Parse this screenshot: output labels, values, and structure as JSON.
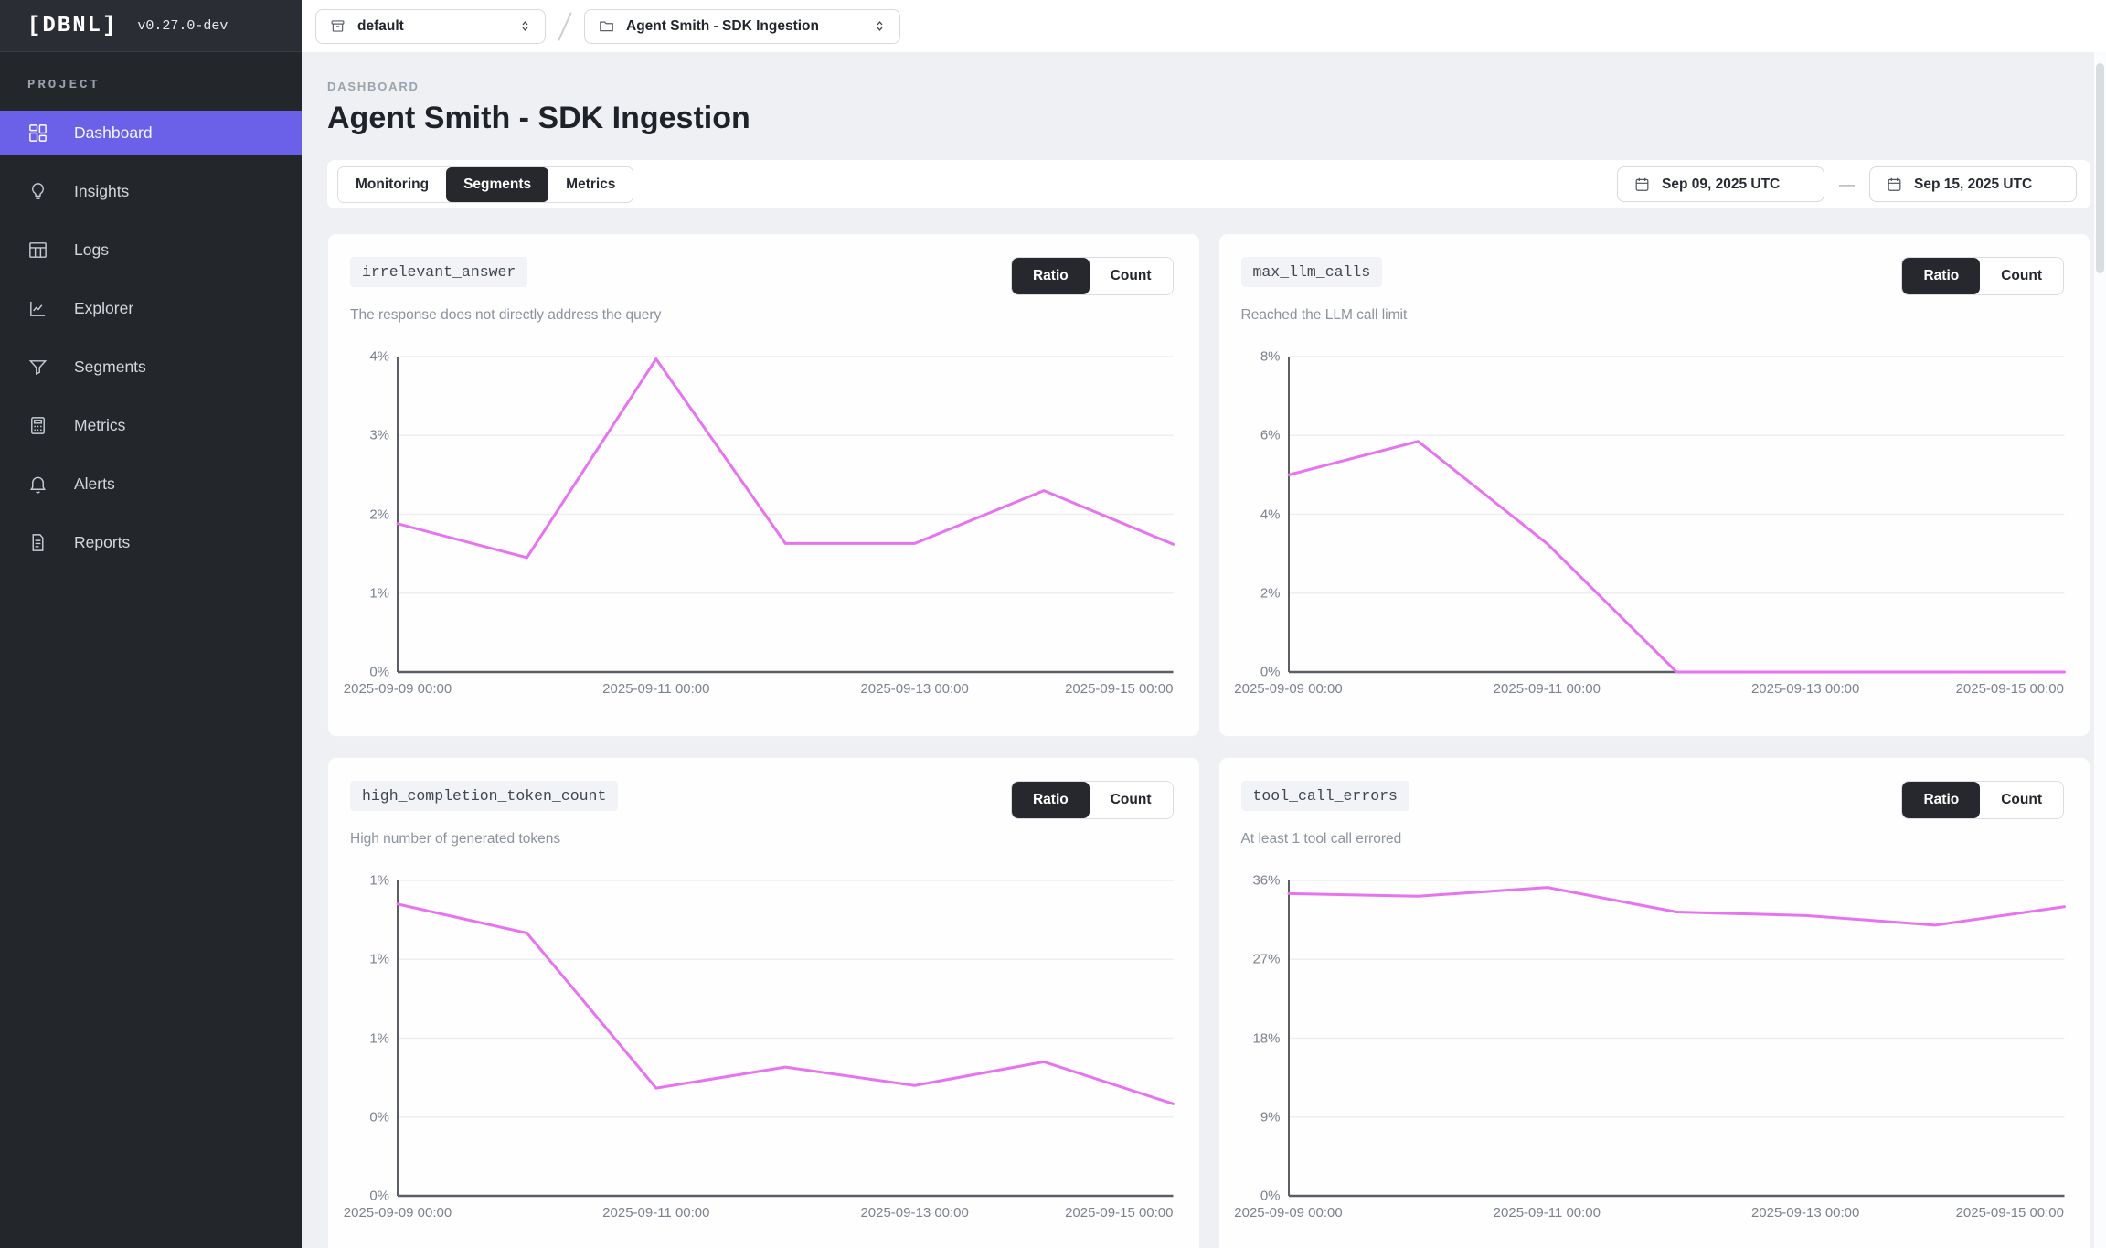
{
  "app": {
    "logo_text": "[DBNL]",
    "version": "v0.27.0-dev"
  },
  "sidebar": {
    "section_label": "PROJECT",
    "items": [
      {
        "label": "Dashboard",
        "icon": "dashboard-icon",
        "active": true
      },
      {
        "label": "Insights",
        "icon": "lightbulb-icon",
        "active": false
      },
      {
        "label": "Logs",
        "icon": "table-icon",
        "active": false
      },
      {
        "label": "Explorer",
        "icon": "chart-line-icon",
        "active": false
      },
      {
        "label": "Segments",
        "icon": "funnel-icon",
        "active": false
      },
      {
        "label": "Metrics",
        "icon": "calculator-icon",
        "active": false
      },
      {
        "label": "Alerts",
        "icon": "bell-icon",
        "active": false
      },
      {
        "label": "Reports",
        "icon": "report-icon",
        "active": false
      }
    ]
  },
  "topbar": {
    "workspace": {
      "label": "default",
      "icon": "archive-icon"
    },
    "project": {
      "label": "Agent Smith - SDK Ingestion",
      "icon": "folder-icon"
    }
  },
  "header": {
    "breadcrumb": "DASHBOARD",
    "title": "Agent Smith - SDK Ingestion"
  },
  "toolbar": {
    "tabs": [
      {
        "label": "Monitoring",
        "active": false
      },
      {
        "label": "Segments",
        "active": true
      },
      {
        "label": "Metrics",
        "active": false
      }
    ],
    "date_start": "Sep 09, 2025 UTC",
    "date_separator": "—",
    "date_end": "Sep 15, 2025 UTC"
  },
  "toggle": {
    "ratio": "Ratio",
    "count": "Count",
    "selected": "Ratio"
  },
  "colors": {
    "accent_purple": "#6a61e8",
    "line_magenta": "#e873f0",
    "sidebar_bg": "#23262b",
    "dark_button": "#26282d",
    "axis": "#5b5f64",
    "gridline": "#eceef1"
  },
  "chart_data": [
    {
      "type": "line",
      "name": "irrelevant_answer",
      "description": "The response does not directly address the query",
      "mode": "Ratio",
      "x": [
        "2025-09-09",
        "2025-09-10",
        "2025-09-11",
        "2025-09-12",
        "2025-09-13",
        "2025-09-14",
        "2025-09-15"
      ],
      "values": [
        1.88,
        1.45,
        3.97,
        1.63,
        1.63,
        2.3,
        1.62
      ],
      "unit": "%",
      "ylim": [
        0,
        4
      ],
      "y_ticks": [
        0,
        1,
        2,
        3,
        4
      ],
      "y_tick_labels": [
        "0%",
        "1%",
        "2%",
        "3%",
        "4%"
      ],
      "x_tick_labels": [
        "2025-09-09 00:00",
        "2025-09-11 00:00",
        "2025-09-13 00:00",
        "2025-09-15 00:00"
      ],
      "grid": true,
      "legend": "none"
    },
    {
      "type": "line",
      "name": "max_llm_calls",
      "description": "Reached the LLM call limit",
      "mode": "Ratio",
      "x": [
        "2025-09-09",
        "2025-09-10",
        "2025-09-11",
        "2025-09-12",
        "2025-09-13",
        "2025-09-14",
        "2025-09-15"
      ],
      "values": [
        5.0,
        5.85,
        3.25,
        0,
        0,
        0,
        0
      ],
      "unit": "%",
      "ylim": [
        0,
        8
      ],
      "y_ticks": [
        0,
        2,
        4,
        6,
        8
      ],
      "y_tick_labels": [
        "0%",
        "2%",
        "4%",
        "6%",
        "8%"
      ],
      "x_tick_labels": [
        "2025-09-09 00:00",
        "2025-09-11 00:00",
        "2025-09-13 00:00",
        "2025-09-15 00:00"
      ],
      "grid": true,
      "legend": "none"
    },
    {
      "type": "line",
      "name": "high_completion_token_count",
      "description": "High number of generated tokens",
      "mode": "Ratio",
      "x": [
        "2025-09-09",
        "2025-09-10",
        "2025-09-11",
        "2025-09-12",
        "2025-09-13",
        "2025-09-14",
        "2025-09-15"
      ],
      "values": [
        1.11,
        1.0,
        0.41,
        0.49,
        0.42,
        0.51,
        0.35
      ],
      "unit": "%",
      "ylim": [
        0,
        1.2
      ],
      "y_ticks": [
        0,
        0.3,
        0.6,
        0.9,
        1.2
      ],
      "y_tick_labels": [
        "0%",
        "0%",
        "1%",
        "1%",
        "1%"
      ],
      "x_tick_labels": [
        "2025-09-09 00:00",
        "2025-09-11 00:00",
        "2025-09-13 00:00",
        "2025-09-15 00:00"
      ],
      "grid": true,
      "legend": "none"
    },
    {
      "type": "line",
      "name": "tool_call_errors",
      "description": "At least 1 tool call errored",
      "mode": "Ratio",
      "x": [
        "2025-09-09",
        "2025-09-10",
        "2025-09-11",
        "2025-09-12",
        "2025-09-13",
        "2025-09-14",
        "2025-09-15"
      ],
      "values": [
        34.5,
        34.2,
        35.2,
        32.4,
        32.0,
        30.9,
        33.0
      ],
      "unit": "%",
      "ylim": [
        0,
        36
      ],
      "y_ticks": [
        0,
        9,
        18,
        27,
        36
      ],
      "y_tick_labels": [
        "0%",
        "9%",
        "18%",
        "27%",
        "36%"
      ],
      "x_tick_labels": [
        "2025-09-09 00:00",
        "2025-09-11 00:00",
        "2025-09-13 00:00",
        "2025-09-15 00:00"
      ],
      "grid": true,
      "legend": "none"
    }
  ]
}
